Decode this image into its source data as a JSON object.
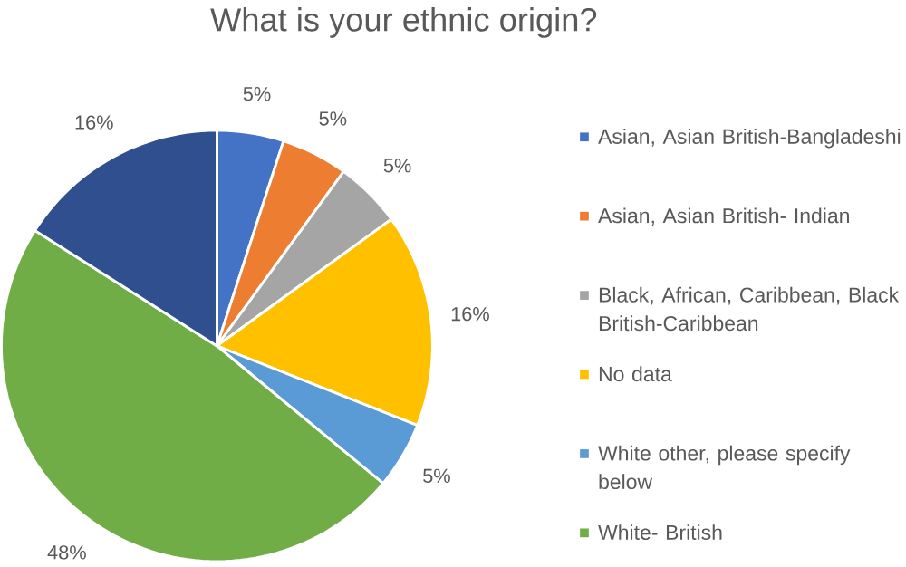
{
  "chart_data": {
    "type": "pie",
    "title": "What is your ethnic origin?",
    "categories": [
      "Asian, Asian British-Bangladeshi",
      "Asian, Asian British- Indian",
      "Black, African, Caribbean, Black British-Caribbean",
      "No data",
      "White other, please specify below",
      "White- British",
      null
    ],
    "values": [
      5,
      5,
      5,
      16,
      5,
      48,
      16
    ],
    "colors": [
      "#4472c4",
      "#ed7d31",
      "#a5a5a5",
      "#ffc000",
      "#5b9bd5",
      "#70ad47",
      "#2f4f8f"
    ],
    "value_labels": [
      "5%",
      "5%",
      "5%",
      "16%",
      "5%",
      "48%",
      "16%"
    ],
    "legend": "right"
  }
}
